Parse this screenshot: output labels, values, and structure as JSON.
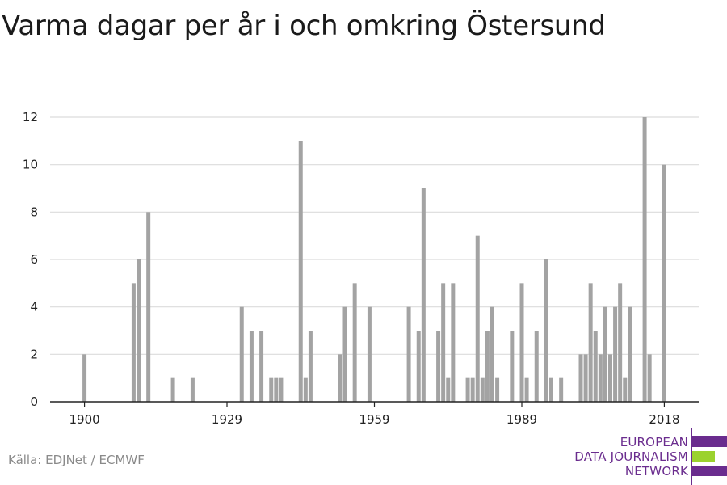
{
  "title": "Varma dagar per år i och omkring Östersund",
  "source": "Källa: EDJNet / ECMWF",
  "logo": {
    "line1": "EUROPEAN",
    "line2": "DATA JOURNALISM",
    "line3": "NETWORK",
    "color_purple": "#6a2c8e",
    "color_green": "#9bd22e"
  },
  "colors": {
    "bar": "#a3a3a3",
    "grid": "#dcdcdc",
    "axis": "#222222"
  },
  "chart_data": {
    "type": "bar",
    "title": "Varma dagar per år i och omkring Östersund",
    "xlabel": "",
    "ylabel": "",
    "xlim": [
      1893,
      2025
    ],
    "ylim": [
      0,
      12
    ],
    "x_ticks": [
      1900,
      1929,
      1959,
      1989,
      2018
    ],
    "y_ticks": [
      0,
      2,
      4,
      6,
      8,
      10,
      12
    ],
    "grid": true,
    "x": [
      1900,
      1910,
      1911,
      1913,
      1918,
      1922,
      1932,
      1934,
      1936,
      1938,
      1939,
      1940,
      1944,
      1945,
      1946,
      1952,
      1953,
      1955,
      1958,
      1966,
      1968,
      1969,
      1972,
      1973,
      1974,
      1975,
      1978,
      1979,
      1980,
      1981,
      1982,
      1983,
      1984,
      1987,
      1989,
      1990,
      1992,
      1994,
      1995,
      1997,
      2001,
      2002,
      2003,
      2004,
      2005,
      2006,
      2007,
      2008,
      2009,
      2010,
      2011,
      2014,
      2015,
      2018
    ],
    "values": [
      2,
      5,
      6,
      8,
      1,
      1,
      4,
      3,
      3,
      1,
      1,
      1,
      11,
      1,
      3,
      2,
      4,
      5,
      4,
      4,
      3,
      9,
      3,
      5,
      1,
      5,
      1,
      1,
      7,
      1,
      3,
      4,
      1,
      3,
      5,
      1,
      3,
      6,
      1,
      1,
      2,
      2,
      5,
      3,
      2,
      4,
      2,
      4,
      5,
      1,
      4,
      12,
      2,
      10
    ]
  }
}
